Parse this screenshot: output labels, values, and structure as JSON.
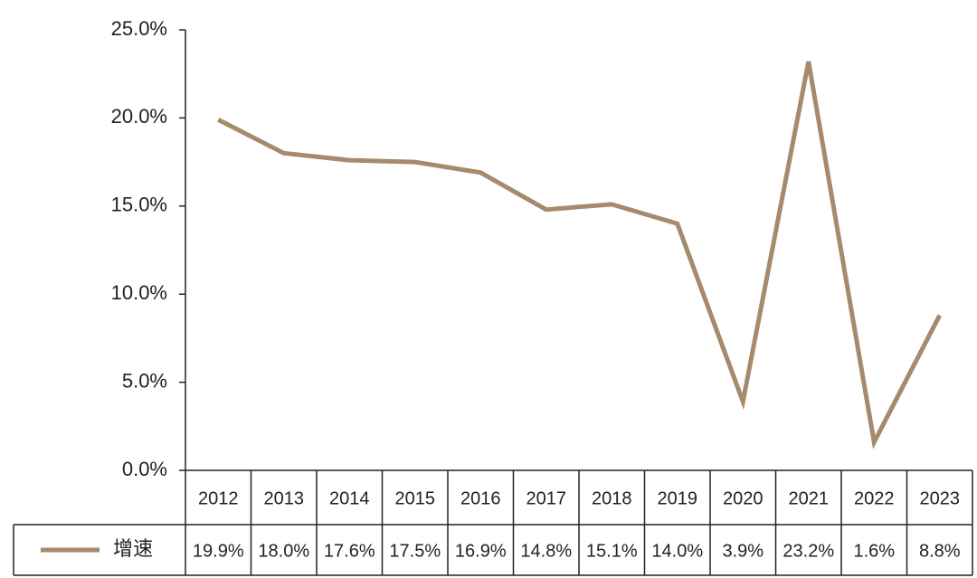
{
  "chart_data": {
    "type": "line",
    "categories": [
      "2012",
      "2013",
      "2014",
      "2015",
      "2016",
      "2017",
      "2018",
      "2019",
      "2020",
      "2021",
      "2022",
      "2023"
    ],
    "series": [
      {
        "name": "增速",
        "color": "#a68a6d",
        "values": [
          19.9,
          18.0,
          17.6,
          17.5,
          16.9,
          14.8,
          15.1,
          14.0,
          3.9,
          23.2,
          1.6,
          8.8
        ],
        "value_labels": [
          "19.9%",
          "18.0%",
          "17.6%",
          "17.5%",
          "16.9%",
          "14.8%",
          "15.1%",
          "14.0%",
          "3.9%",
          "23.2%",
          "1.6%",
          "8.8%"
        ]
      }
    ],
    "ylim": [
      0,
      25
    ],
    "yticks": [
      {
        "value": 0,
        "label": "0.0%"
      },
      {
        "value": 5,
        "label": "5.0%"
      },
      {
        "value": 10,
        "label": "10.0%"
      },
      {
        "value": 15,
        "label": "15.0%"
      },
      {
        "value": 20,
        "label": "20.0%"
      },
      {
        "value": 25,
        "label": "25.0%"
      }
    ]
  }
}
